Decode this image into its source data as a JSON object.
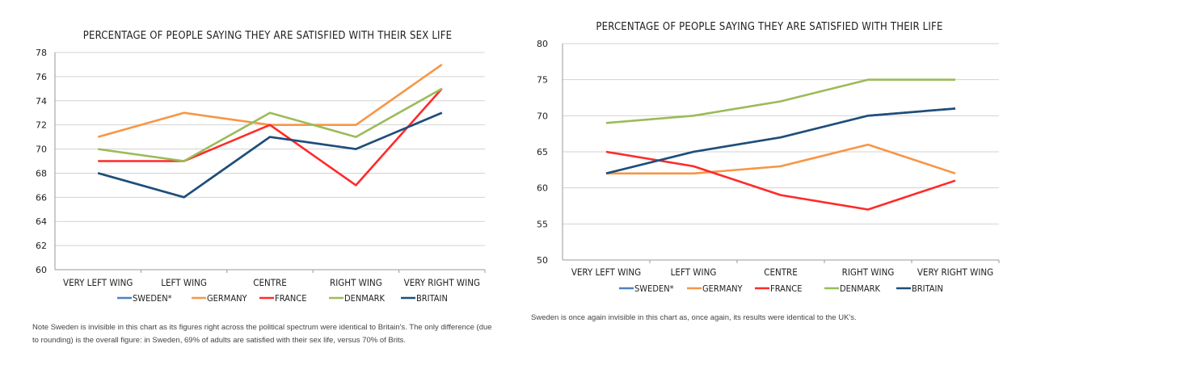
{
  "chart_data": [
    {
      "type": "line",
      "title": "PERCENTAGE OF PEOPLE SAYING THEY ARE SATISFIED WITH THEIR SEX LIFE",
      "categories": [
        "VERY LEFT WING",
        "LEFT WING",
        "CENTRE",
        "RIGHT WING",
        "VERY RIGHT WING"
      ],
      "ylim": [
        60,
        78
      ],
      "yticks": [
        "60",
        "62",
        "64",
        "66",
        "68",
        "70",
        "72",
        "74",
        "76",
        "78"
      ],
      "grid": true,
      "legend_position": "bottom",
      "legend": [
        "SWEDEN*",
        "GERMANY",
        "FRANCE",
        "DENMARK",
        "BRITAIN"
      ],
      "series": [
        {
          "name": "SWEDEN*",
          "color": "#4f81bd",
          "values": [
            68,
            66,
            71,
            70,
            73
          ]
        },
        {
          "name": "GERMANY",
          "color": "#f79646",
          "values": [
            71,
            73,
            72,
            72,
            77
          ]
        },
        {
          "name": "FRANCE",
          "color": "#ff2a2a",
          "values": [
            69,
            69,
            72,
            67,
            75
          ]
        },
        {
          "name": "DENMARK",
          "color": "#9bbb59",
          "values": [
            70,
            69,
            73,
            71,
            75
          ]
        },
        {
          "name": "BRITAIN",
          "color": "#1f4e79",
          "values": [
            68,
            66,
            71,
            70,
            73
          ]
        }
      ],
      "note": "Note Sweden is invisible in this chart as its figures right across the political spectrum were identical to Britain's. The only difference (due to rounding) is the overall figure: in Sweden, 69% of adults are satisfied with their sex life, versus 70% of Brits."
    },
    {
      "type": "line",
      "title": "PERCENTAGE OF PEOPLE SAYING THEY ARE SATISFIED WITH THEIR LIFE",
      "categories": [
        "VERY LEFT WING",
        "LEFT WING",
        "CENTRE",
        "RIGHT WING",
        "VERY RIGHT WING"
      ],
      "ylim": [
        50,
        80
      ],
      "yticks": [
        "50",
        "55",
        "60",
        "65",
        "70",
        "75",
        "80"
      ],
      "grid": true,
      "legend_position": "bottom",
      "legend": [
        "SWEDEN*",
        "GERMANY",
        "FRANCE",
        "DENMARK",
        "BRITAIN"
      ],
      "series": [
        {
          "name": "SWEDEN*",
          "color": "#4f81bd",
          "values": [
            62,
            65,
            67,
            70,
            71
          ]
        },
        {
          "name": "GERMANY",
          "color": "#f79646",
          "values": [
            62,
            62,
            63,
            66,
            62
          ]
        },
        {
          "name": "FRANCE",
          "color": "#ff2a2a",
          "values": [
            65,
            63,
            59,
            57,
            61
          ]
        },
        {
          "name": "DENMARK",
          "color": "#9bbb59",
          "values": [
            69,
            70,
            72,
            75,
            75
          ]
        },
        {
          "name": "BRITAIN",
          "color": "#1f4e79",
          "values": [
            62,
            65,
            67,
            70,
            71
          ]
        }
      ],
      "note": "Sweden is once again invisible in this chart as, once again, its results were identical to the UK's."
    }
  ]
}
